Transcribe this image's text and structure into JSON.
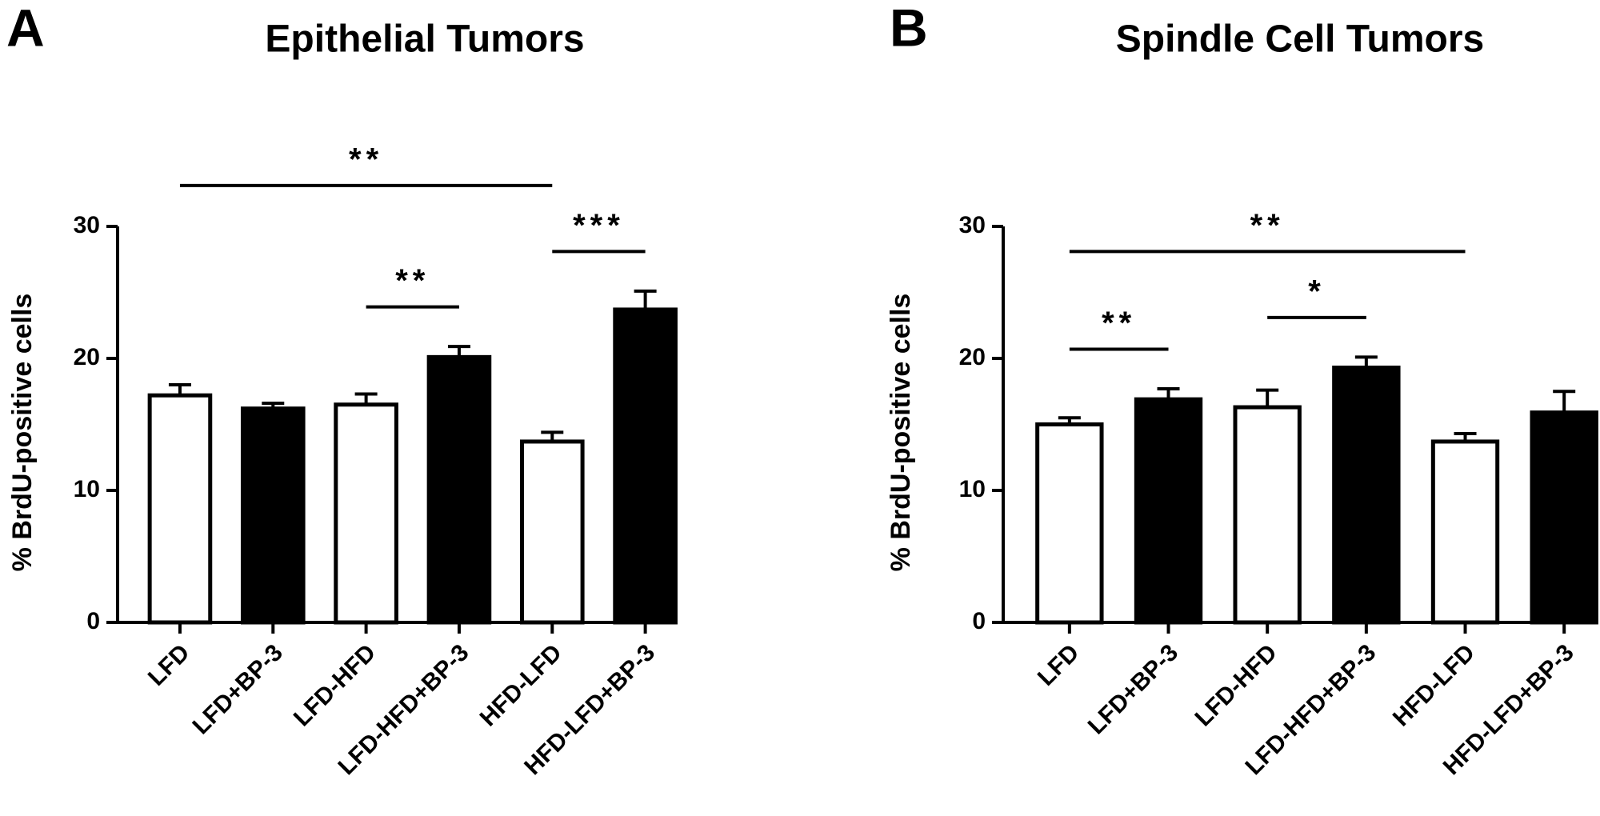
{
  "chart_data": [
    {
      "type": "bar",
      "panel": "A",
      "title": "Epithelial Tumors",
      "ylabel": "% BrdU-positive cells",
      "categories": [
        "LFD",
        "LFD+BP-3",
        "LFD-HFD",
        "LFD-HFD+BP-3",
        "HFD-LFD",
        "HFD-LFD+BP-3"
      ],
      "values": [
        17.2,
        16.2,
        16.5,
        20.1,
        13.7,
        23.7
      ],
      "errors": [
        0.8,
        0.4,
        0.8,
        0.8,
        0.7,
        1.4
      ],
      "colors": [
        "#ffffff",
        "#000000",
        "#ffffff",
        "#000000",
        "#ffffff",
        "#000000"
      ],
      "ylim": [
        0,
        30
      ],
      "yticks": [
        0,
        10,
        20,
        30
      ],
      "comparisons": [
        {
          "label": "**",
          "between": [
            "LFD-HFD",
            "LFD-HFD+BP-3"
          ]
        },
        {
          "label": "***",
          "between": [
            "HFD-LFD",
            "HFD-LFD+BP-3"
          ]
        },
        {
          "label": "**",
          "between": [
            "LFD",
            "HFD-LFD"
          ]
        }
      ]
    },
    {
      "type": "bar",
      "panel": "B",
      "title": "Spindle Cell Tumors",
      "ylabel": "% BrdU-positive cells",
      "categories": [
        "LFD",
        "LFD+BP-3",
        "LFD-HFD",
        "LFD-HFD+BP-3",
        "HFD-LFD",
        "HFD-LFD+BP-3"
      ],
      "values": [
        15.0,
        16.9,
        16.3,
        19.3,
        13.7,
        15.9
      ],
      "errors": [
        0.5,
        0.8,
        1.3,
        0.8,
        0.6,
        1.6
      ],
      "colors": [
        "#ffffff",
        "#000000",
        "#ffffff",
        "#000000",
        "#ffffff",
        "#000000"
      ],
      "ylim": [
        0,
        30
      ],
      "yticks": [
        0,
        10,
        20,
        30
      ],
      "comparisons": [
        {
          "label": "**",
          "between": [
            "LFD",
            "LFD+BP-3"
          ]
        },
        {
          "label": "*",
          "between": [
            "LFD-HFD",
            "LFD-HFD+BP-3"
          ]
        },
        {
          "label": "**",
          "between": [
            "LFD",
            "HFD-LFD"
          ]
        }
      ]
    }
  ]
}
